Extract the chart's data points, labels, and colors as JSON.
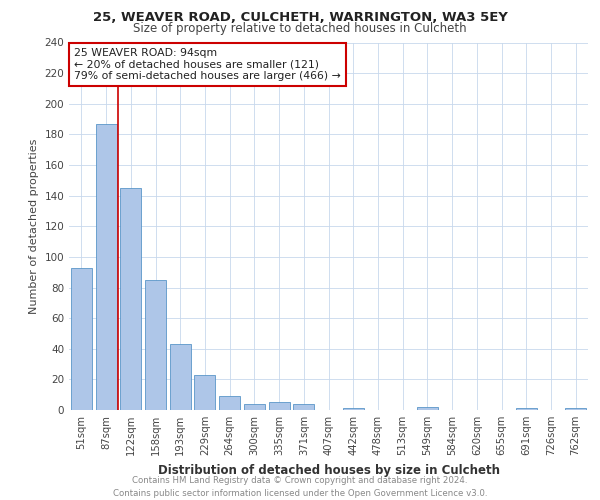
{
  "title1": "25, WEAVER ROAD, CULCHETH, WARRINGTON, WA3 5EY",
  "title2": "Size of property relative to detached houses in Culcheth",
  "xlabel": "Distribution of detached houses by size in Culcheth",
  "ylabel": "Number of detached properties",
  "categories": [
    "51sqm",
    "87sqm",
    "122sqm",
    "158sqm",
    "193sqm",
    "229sqm",
    "264sqm",
    "300sqm",
    "335sqm",
    "371sqm",
    "407sqm",
    "442sqm",
    "478sqm",
    "513sqm",
    "549sqm",
    "584sqm",
    "620sqm",
    "655sqm",
    "691sqm",
    "726sqm",
    "762sqm"
  ],
  "values": [
    93,
    187,
    145,
    85,
    43,
    23,
    9,
    4,
    5,
    4,
    0,
    1,
    0,
    0,
    2,
    0,
    0,
    0,
    1,
    0,
    1
  ],
  "bar_color": "#aec6e8",
  "bar_edge_color": "#5a96c8",
  "annotation_title": "25 WEAVER ROAD: 94sqm",
  "annotation_line1": "← 20% of detached houses are smaller (121)",
  "annotation_line2": "79% of semi-detached houses are larger (466) →",
  "annotation_box_color": "#ffffff",
  "annotation_box_edge_color": "#cc0000",
  "vline_color": "#cc0000",
  "vline_x": 1.5,
  "ylim": [
    0,
    240
  ],
  "yticks": [
    0,
    20,
    40,
    60,
    80,
    100,
    120,
    140,
    160,
    180,
    200,
    220,
    240
  ],
  "footer_line1": "Contains HM Land Registry data © Crown copyright and database right 2024.",
  "footer_line2": "Contains public sector information licensed under the Open Government Licence v3.0.",
  "bg_color": "#ffffff",
  "grid_color": "#c8d8ec"
}
